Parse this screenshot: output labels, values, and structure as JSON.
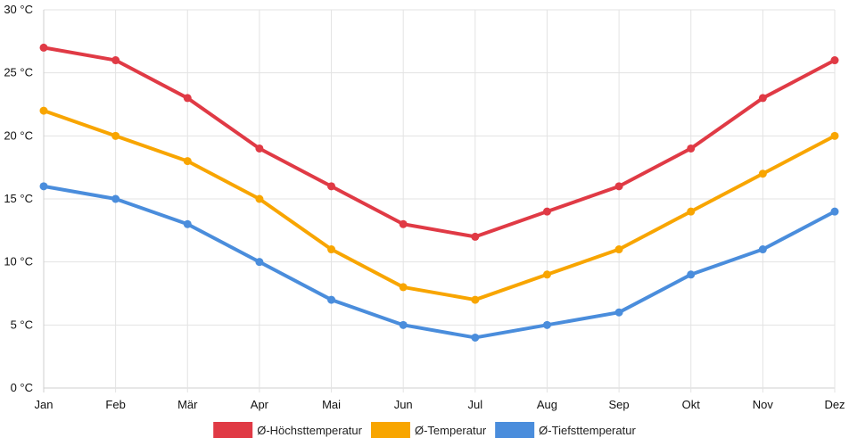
{
  "chart_data": {
    "type": "line",
    "title": "",
    "xlabel": "",
    "ylabel": "",
    "ylim": [
      0,
      30
    ],
    "y_ticks": [
      0,
      5,
      10,
      15,
      20,
      25,
      30
    ],
    "y_unit": " °C",
    "y_tick_labels": [
      "0 °C",
      "5 °C",
      "10 °C",
      "15 °C",
      "20 °C",
      "25 °C",
      "30 °C"
    ],
    "grid": true,
    "legend_position": "bottom",
    "categories": [
      "Jan",
      "Feb",
      "Mär",
      "Apr",
      "Mai",
      "Jun",
      "Jul",
      "Aug",
      "Sep",
      "Okt",
      "Nov",
      "Dez"
    ],
    "series": [
      {
        "name": "Ø-Höchsttemperatur",
        "color": "#e03a45",
        "values": [
          27,
          26,
          23,
          19,
          16,
          13,
          12,
          14,
          16,
          19,
          23,
          26
        ]
      },
      {
        "name": "Ø-Temperatur",
        "color": "#f8a500",
        "values": [
          22,
          20,
          18,
          15,
          11,
          8,
          7,
          9,
          11,
          14,
          17,
          20
        ]
      },
      {
        "name": "Ø-Tiefsttemperatur",
        "color": "#4a8ddc",
        "values": [
          16,
          15,
          13,
          10,
          7,
          5,
          4,
          5,
          6,
          9,
          11,
          14
        ]
      }
    ]
  }
}
